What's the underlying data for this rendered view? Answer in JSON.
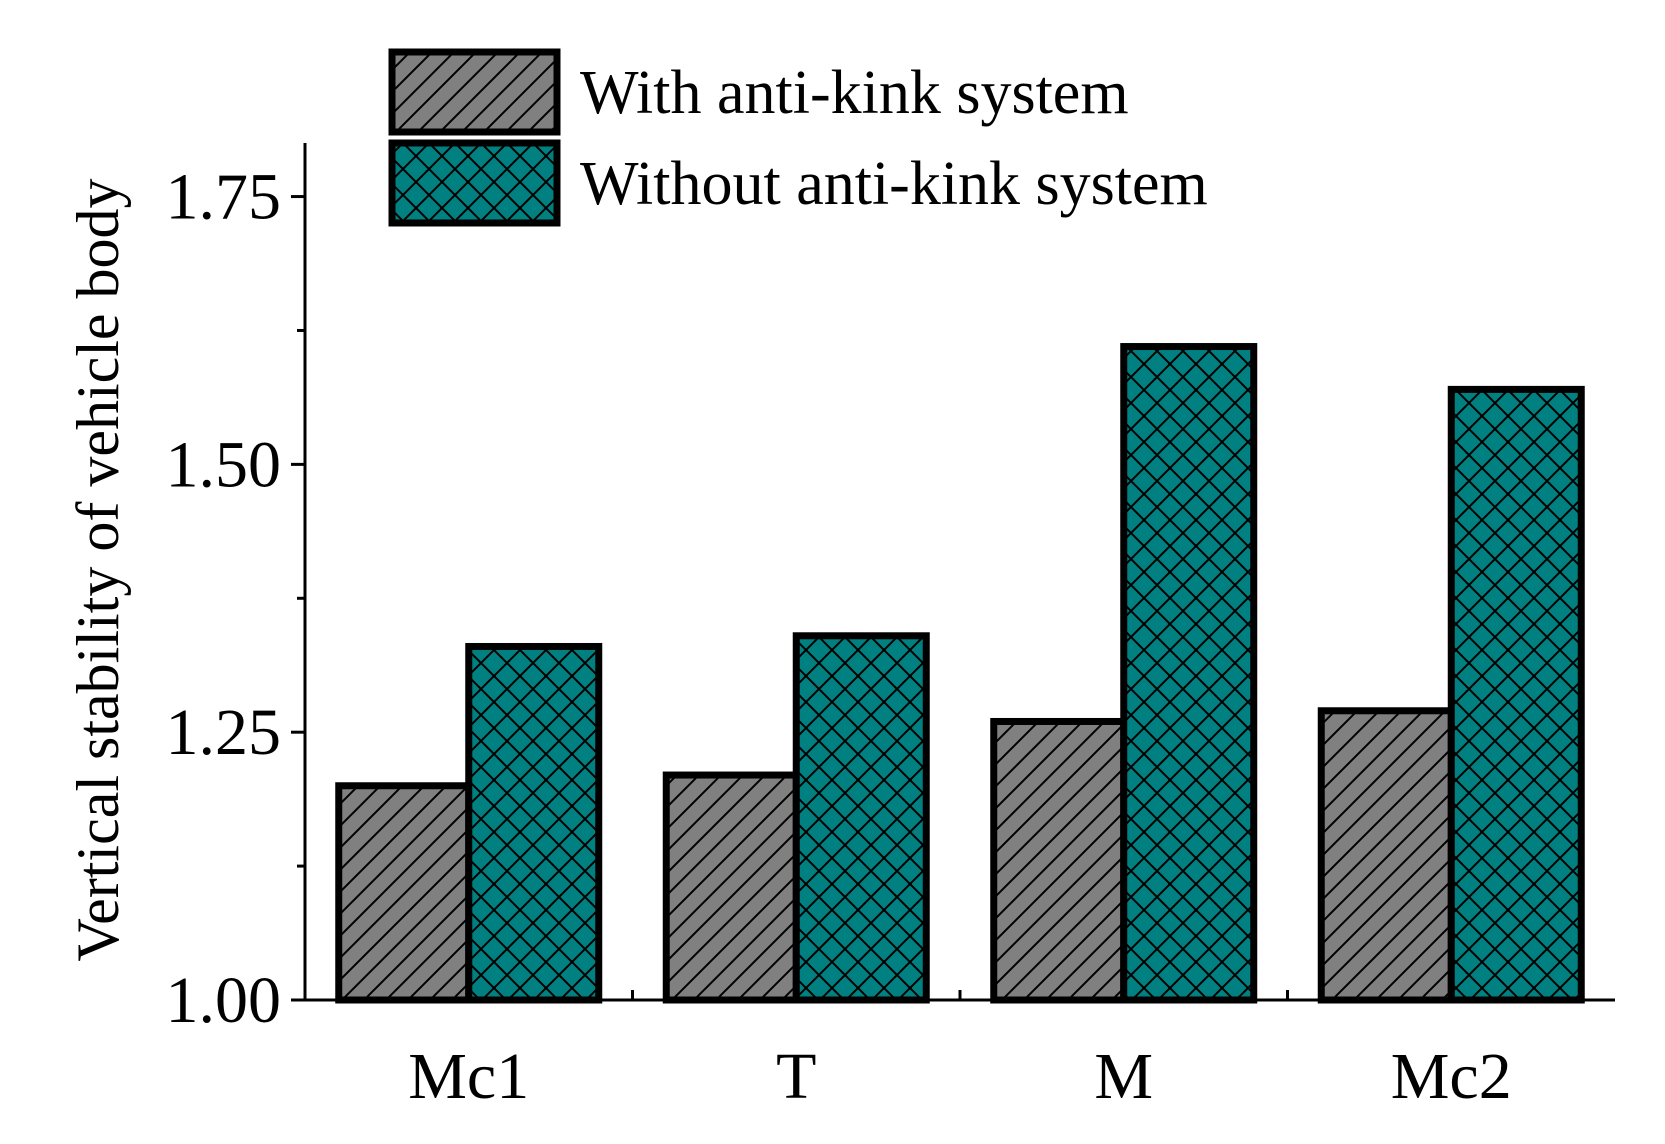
{
  "chart_data": {
    "type": "bar",
    "categories": [
      "Mc1",
      "T",
      "M",
      "Mc2"
    ],
    "series": [
      {
        "name": "With anti-kink system",
        "values": [
          1.2,
          1.21,
          1.26,
          1.27
        ]
      },
      {
        "name": "Without anti-kink system",
        "values": [
          1.33,
          1.34,
          1.61,
          1.57
        ]
      }
    ],
    "ylabel": "Vertical stability of vehicle body",
    "xlabel": "",
    "ylim": [
      1.0,
      1.8
    ],
    "yticks": [
      "1.00",
      "1.25",
      "1.50",
      "1.75"
    ],
    "legend_position": "top",
    "grid": false,
    "colors": {
      "series_0": "#808080",
      "series_1": "#008080",
      "stroke": "#000000"
    }
  }
}
